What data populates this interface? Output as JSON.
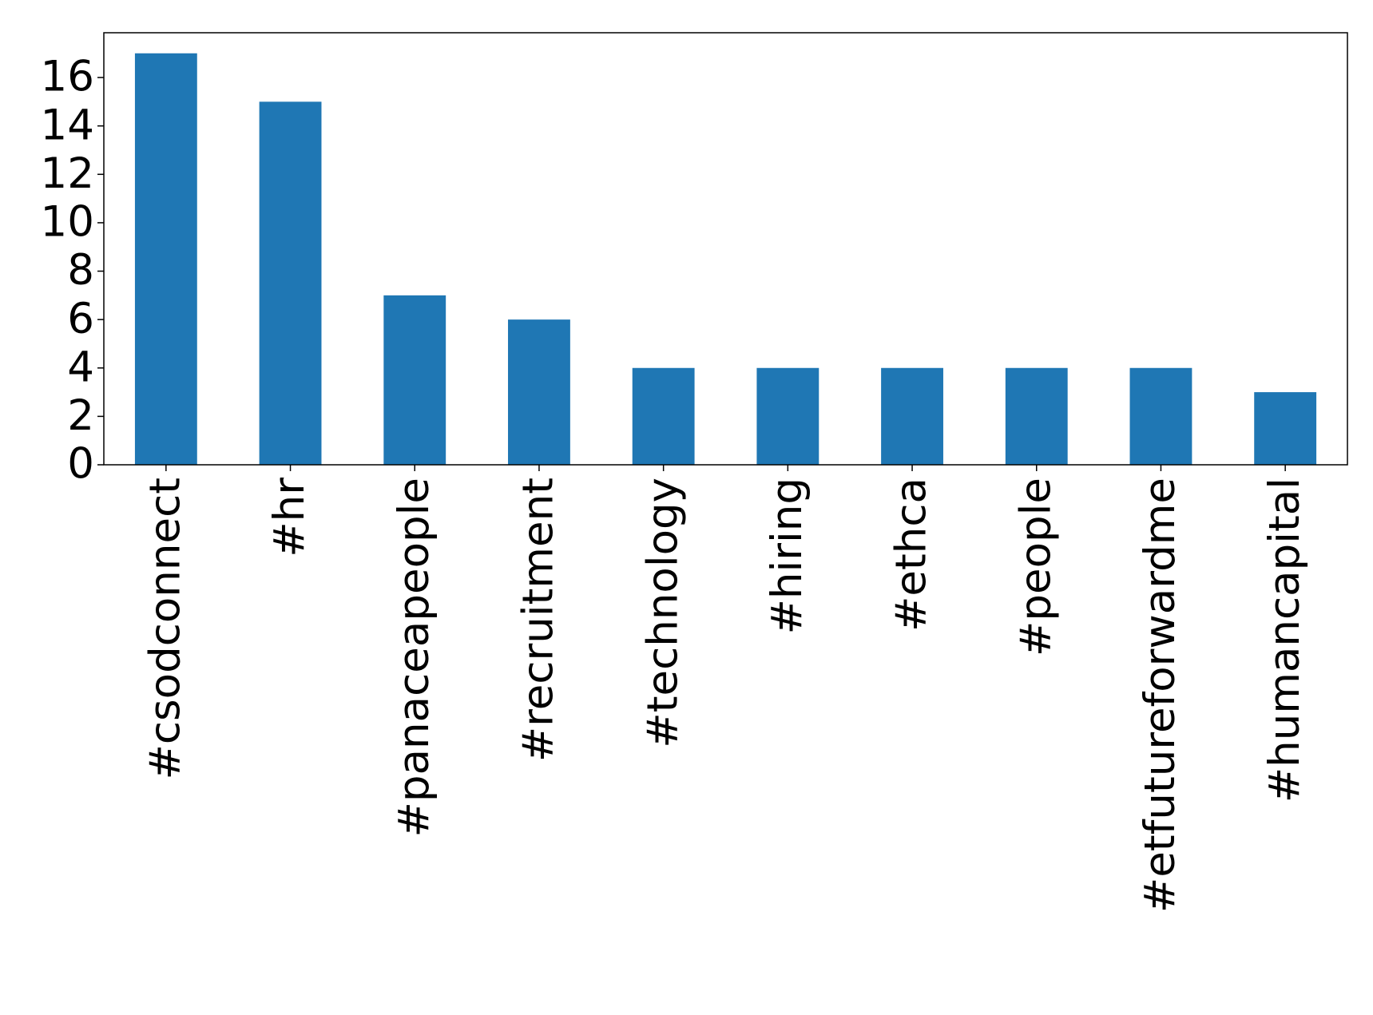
{
  "chart_data": {
    "type": "bar",
    "categories": [
      "#csodconnect",
      "#hr",
      "#panaceapeople",
      "#recruitment",
      "#technology",
      "#hiring",
      "#ethca",
      "#people",
      "#etfutureforwardme",
      "#humancapital"
    ],
    "values": [
      17,
      15,
      7,
      6,
      4,
      4,
      4,
      4,
      4,
      3
    ],
    "color": "#1f77b4",
    "ylim": [
      0,
      17.85
    ],
    "yticks": [
      0,
      2,
      4,
      6,
      8,
      10,
      12,
      14,
      16
    ],
    "grid": false
  }
}
